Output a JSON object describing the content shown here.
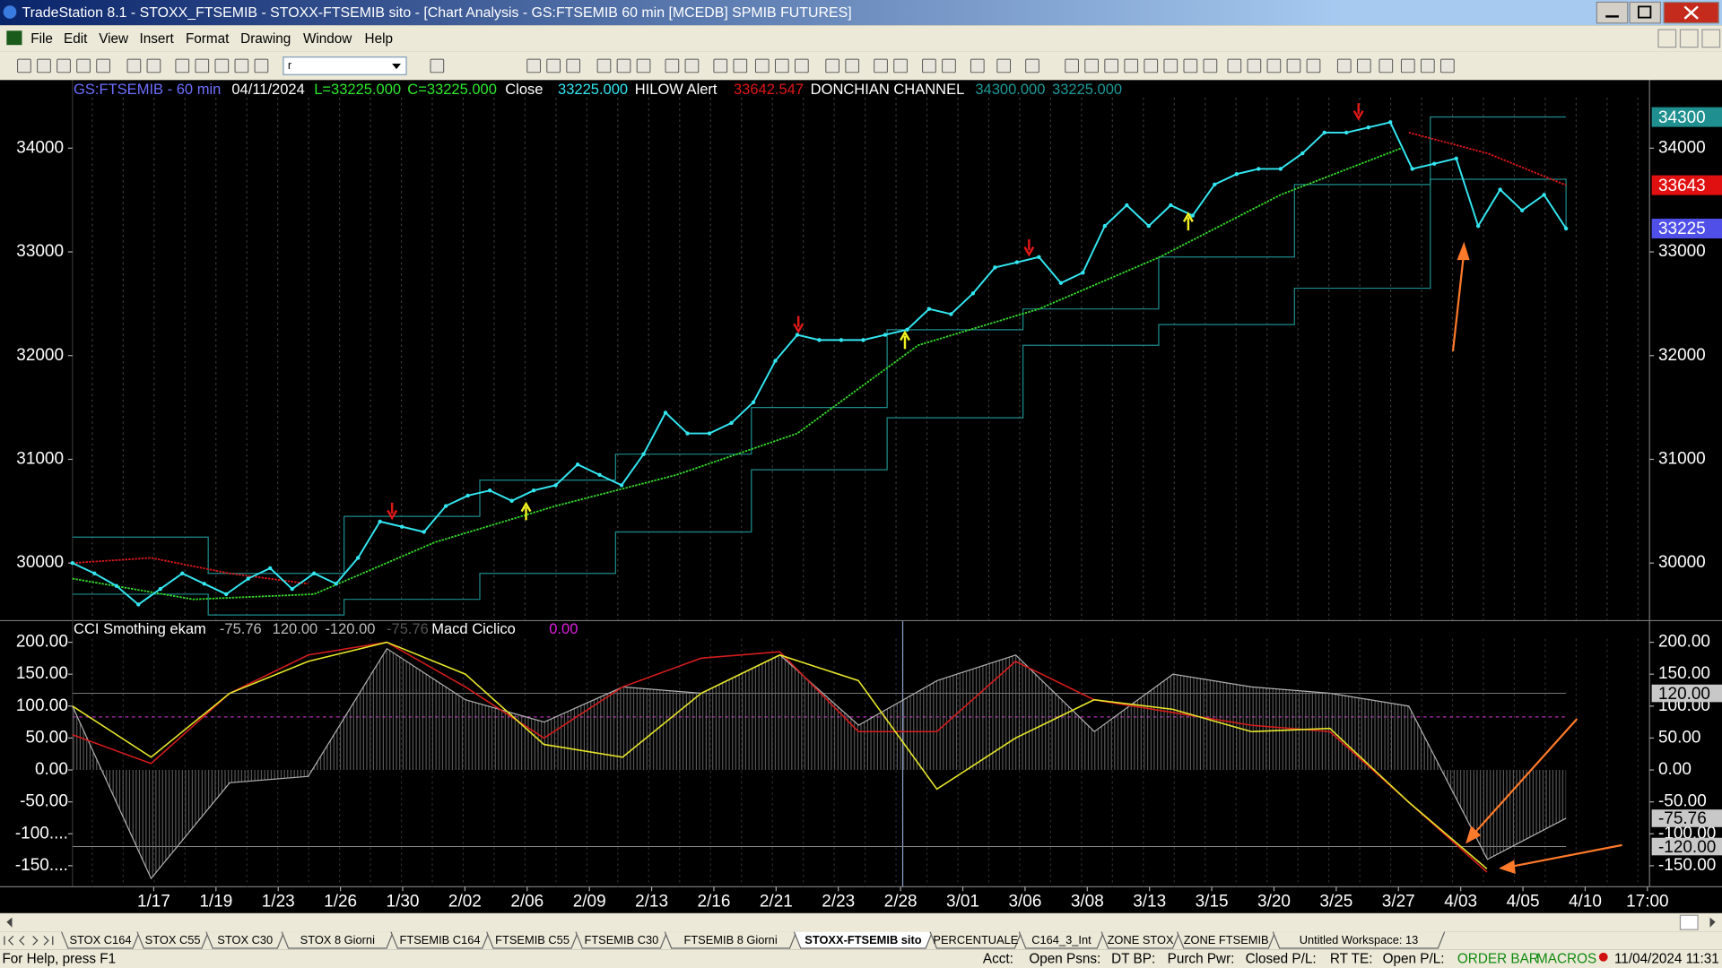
{
  "window": {
    "title": "TradeStation 8.1 - STOXX_FTSEMIB - STOXX-FTSEMIB sito - [Chart Analysis - GS:FTSEMIB  60 min  [MCEDB] SPMIB FUTURES]",
    "menu": [
      "File",
      "Edit",
      "View",
      "Insert",
      "Format",
      "Drawing",
      "Window",
      "Help"
    ],
    "symbol_box": "r"
  },
  "price_panel": {
    "header": [
      "GS:FTSEMIB - 60 min",
      "04/11/2024",
      "L=33225.000",
      "C=33225.000",
      "Close",
      "33225.000",
      "HILOW Alert",
      "33642.547",
      "DONCHIAN CHANNEL",
      "34300.000",
      "33225.000"
    ],
    "ylim": [
      29450,
      34656
    ],
    "yticks": [
      30000,
      31000,
      32000,
      33000,
      34000
    ],
    "close": {
      "color": "#33e6f0",
      "values": [
        30000,
        29900,
        29780,
        29600,
        29750,
        29900,
        29800,
        29700,
        29850,
        29950,
        29750,
        29900,
        29800,
        30050,
        30400,
        30350,
        30300,
        30550,
        30650,
        30700,
        30600,
        30700,
        30750,
        30950,
        30850,
        30750,
        31050,
        31450,
        31250,
        31250,
        31350,
        31550,
        31950,
        32200,
        32150,
        32150,
        32150,
        32200,
        32250,
        32450,
        32400,
        32600,
        32850,
        32900,
        32950,
        32700,
        32800,
        33250,
        33450,
        33250,
        33450,
        33350,
        33650,
        33750,
        33800,
        33800,
        33950,
        34150,
        34150,
        34200,
        34250,
        33800,
        33850,
        33900,
        33250,
        33600,
        33400,
        33550,
        33225
      ]
    },
    "average": {
      "color": "#35d62a",
      "values": [
        29850,
        29650,
        29700,
        30200,
        30550,
        30850,
        31250,
        32100,
        32450,
        32950,
        33550,
        34000
      ]
    },
    "hilow": {
      "color": "#d61818",
      "values": [
        30000,
        30050,
        29900,
        29800,
        null,
        null,
        null,
        null,
        null,
        null,
        null,
        null,
        null,
        null,
        null,
        null,
        null,
        34150,
        33950,
        33643
      ]
    },
    "donchian_upper": {
      "color": "#1e8c8c",
      "values": [
        30250,
        29900,
        30450,
        30800,
        31050,
        31500,
        32250,
        32450,
        32950,
        33650,
        34300,
        34300
      ]
    },
    "donchian_lower": {
      "color": "#1e8c8c",
      "values": [
        29700,
        29500,
        29650,
        29900,
        30300,
        30900,
        31400,
        32100,
        32300,
        32650,
        33700,
        33225
      ]
    },
    "right_labels": [
      {
        "value": 34300,
        "color": "#1f8f8f"
      },
      {
        "value": 33643,
        "color": "#e01010"
      },
      {
        "value": 33225,
        "color": "#5050e8"
      }
    ]
  },
  "indicator_panel": {
    "header": [
      "CCI Smothing ekam",
      "-75.76",
      "120.00",
      "-120.00",
      "-75.76",
      "Macd Ciclico",
      "0.00"
    ],
    "ylim": [
      -183,
      233
    ],
    "yticks": [
      {
        "value": 200,
        "label": "200.00"
      },
      {
        "value": 150,
        "label": "150.00"
      },
      {
        "value": 100,
        "label": "100.00"
      },
      {
        "value": 50,
        "label": "50.00"
      },
      {
        "value": 0,
        "label": "0.00"
      },
      {
        "value": -50,
        "label": "-50.00"
      },
      {
        "value": -100,
        "label": "-100...."
      },
      {
        "value": -150,
        "label": "-150...."
      }
    ],
    "yticks_right": [
      {
        "value": 200,
        "label": "200.00"
      },
      {
        "value": 150,
        "label": "150.00"
      },
      {
        "value": 100,
        "label": "100.00"
      },
      {
        "value": 50,
        "label": "50.00"
      },
      {
        "value": 0,
        "label": "0.00"
      },
      {
        "value": -50,
        "label": "-50.00"
      },
      {
        "value": -100,
        "label": "-100.00"
      },
      {
        "value": -150,
        "label": "-150.00"
      }
    ],
    "levels": [
      120,
      -120
    ],
    "signal_level": 83,
    "cci": {
      "color": "#b0b0b0",
      "values": [
        100,
        -170,
        -20,
        -10,
        190,
        110,
        75,
        130,
        120,
        180,
        70,
        140,
        180,
        60,
        150,
        130,
        120,
        100,
        -140,
        -75.76
      ]
    },
    "fast": {
      "color": "#d41c1c",
      "values": [
        55,
        10,
        120,
        180,
        200,
        130,
        50,
        130,
        175,
        185,
        60,
        60,
        170,
        110,
        90,
        70,
        60,
        -50,
        -160
      ]
    },
    "slow": {
      "color": "#e6e62a",
      "values": [
        100,
        20,
        120,
        170,
        200,
        150,
        40,
        20,
        120,
        180,
        140,
        -30,
        50,
        110,
        95,
        60,
        65,
        -50,
        -155
      ]
    },
    "right_labels": [
      {
        "value": 120,
        "label": "120.00"
      },
      {
        "value": -75.76,
        "label": "-75.76"
      },
      {
        "value": -120,
        "label": "-120.00"
      }
    ]
  },
  "x_axis": {
    "categories": [
      "1/17",
      "1/19",
      "1/23",
      "1/26",
      "1/30",
      "2/02",
      "2/06",
      "2/09",
      "2/13",
      "2/16",
      "2/21",
      "2/23",
      "2/28",
      "3/01",
      "3/06",
      "3/08",
      "3/13",
      "3/15",
      "3/20",
      "3/25",
      "3/27",
      "4/03",
      "4/05",
      "4/10",
      "17:00"
    ]
  },
  "tabs": [
    "STOX C164",
    "STOX C55",
    "STOX  C30",
    "STOX  8 Giorni",
    "FTSEMIB C164",
    "FTSEMIB C55",
    "FTSEMIB C30",
    "FTSEMIB  8 Giorni",
    "STOXX-FTSEMIB sito",
    "PERCENTUALE",
    "C164_3_Int",
    "ZONE STOX",
    "ZONE FTSEMIB",
    "Untitled Workspace:  13"
  ],
  "active_tab": 8,
  "status_bar": {
    "help": "For Help, press F1",
    "fields": [
      "Acct:",
      "Open Psns:",
      "DT BP:",
      "Purch Pwr:",
      "Closed P/L:",
      "RT TE:",
      "Open P/L:"
    ],
    "order_bar": "ORDER BAR",
    "macros": "MACROS",
    "datetime": "11/04/2024 11:31"
  }
}
